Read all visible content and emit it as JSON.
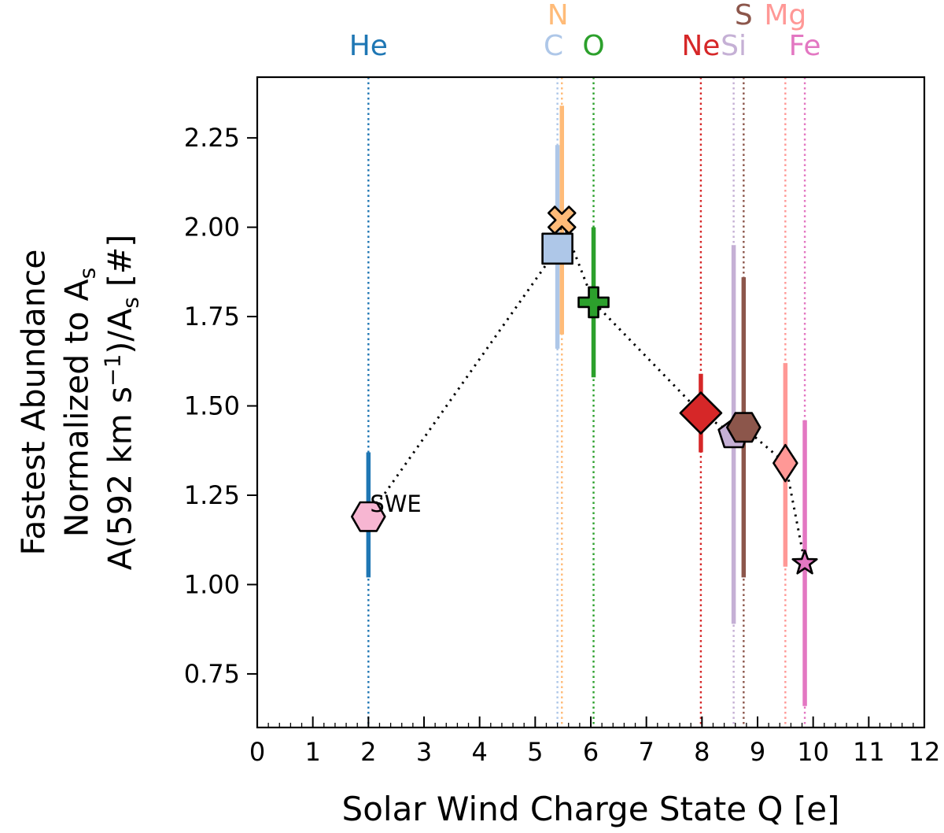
{
  "chart_data": {
    "type": "scatter",
    "title": "",
    "xlabel": "Solar Wind Charge State Q [e]",
    "ylabel_lines": [
      "Fastest Abundance",
      "Normalized to A",
      "A(592 km s",
      ")/A",
      " [#]"
    ],
    "ylabel_sub": "s",
    "ylabel_sup": "−1",
    "xlim": [
      0,
      12
    ],
    "ylim": [
      0.6,
      2.42
    ],
    "x_ticks": [
      0,
      1,
      2,
      3,
      4,
      5,
      6,
      7,
      8,
      9,
      10,
      11,
      12
    ],
    "x_tick_labels": [
      "0",
      "1",
      "2",
      "3",
      "4",
      "5",
      "6",
      "7",
      "8",
      "9",
      "10",
      "11",
      "12"
    ],
    "y_ticks": [
      0.75,
      1.0,
      1.25,
      1.5,
      1.75,
      2.0,
      2.25
    ],
    "y_tick_labels": [
      "0.75",
      "1.00",
      "1.25",
      "1.50",
      "1.75",
      "2.00",
      "2.25"
    ],
    "annotation": "SWE",
    "points": [
      {
        "element": "He",
        "x": 2.0,
        "y": 1.19,
        "err_low": 1.02,
        "err_high": 1.37,
        "color": "#1f77b4",
        "fill": "#f7b6d2",
        "marker": "hexagon"
      },
      {
        "element": "C",
        "x": 5.4,
        "y": 1.94,
        "err_low": 1.66,
        "err_high": 2.23,
        "color": "#aec7e8",
        "fill": "#aec7e8",
        "marker": "square"
      },
      {
        "element": "N",
        "x": 5.48,
        "y": 2.02,
        "err_low": 1.7,
        "err_high": 2.34,
        "color": "#ffbb78",
        "fill": "#ffbb78",
        "marker": "x"
      },
      {
        "element": "O",
        "x": 6.05,
        "y": 1.79,
        "err_low": 1.58,
        "err_high": 2.0,
        "color": "#2ca02c",
        "fill": "#2ca02c",
        "marker": "plus"
      },
      {
        "element": "Ne",
        "x": 7.98,
        "y": 1.48,
        "err_low": 1.37,
        "err_high": 1.59,
        "color": "#d62728",
        "fill": "#d62728",
        "marker": "diamond"
      },
      {
        "element": "Si",
        "x": 8.57,
        "y": 1.42,
        "err_low": 0.89,
        "err_high": 1.95,
        "color": "#c5b0d5",
        "fill": "#c5b0d5",
        "marker": "pentagon"
      },
      {
        "element": "S",
        "x": 8.75,
        "y": 1.44,
        "err_low": 1.02,
        "err_high": 1.86,
        "color": "#8c564b",
        "fill": "#8c564b",
        "marker": "hexagon"
      },
      {
        "element": "Mg",
        "x": 9.5,
        "y": 1.34,
        "err_low": 1.05,
        "err_high": 1.62,
        "color": "#ff9896",
        "fill": "#ff9896",
        "marker": "thin-diamond"
      },
      {
        "element": "Fe",
        "x": 9.85,
        "y": 1.06,
        "err_low": 0.66,
        "err_high": 1.46,
        "color": "#e377c2",
        "fill": "#e377c2",
        "marker": "star"
      }
    ],
    "top_labels": [
      {
        "text": "He",
        "x": 2.0,
        "row": 0,
        "color": "#1f77b4"
      },
      {
        "text": "C",
        "x": 5.4,
        "row": 0,
        "color": "#aec7e8"
      },
      {
        "text": "N",
        "x": 5.48,
        "row": 1,
        "color": "#ffbb78"
      },
      {
        "text": "O",
        "x": 6.05,
        "row": 0,
        "color": "#2ca02c"
      },
      {
        "text": "Ne",
        "x": 7.98,
        "row": 0,
        "color": "#d62728"
      },
      {
        "text": "Si",
        "x": 8.57,
        "row": 0,
        "color": "#c5b0d5"
      },
      {
        "text": "S",
        "x": 8.75,
        "row": 1,
        "color": "#8c564b"
      },
      {
        "text": "Mg",
        "x": 9.5,
        "row": 1,
        "color": "#ff9896"
      },
      {
        "text": "Fe",
        "x": 9.85,
        "row": 0,
        "color": "#e377c2"
      }
    ]
  }
}
